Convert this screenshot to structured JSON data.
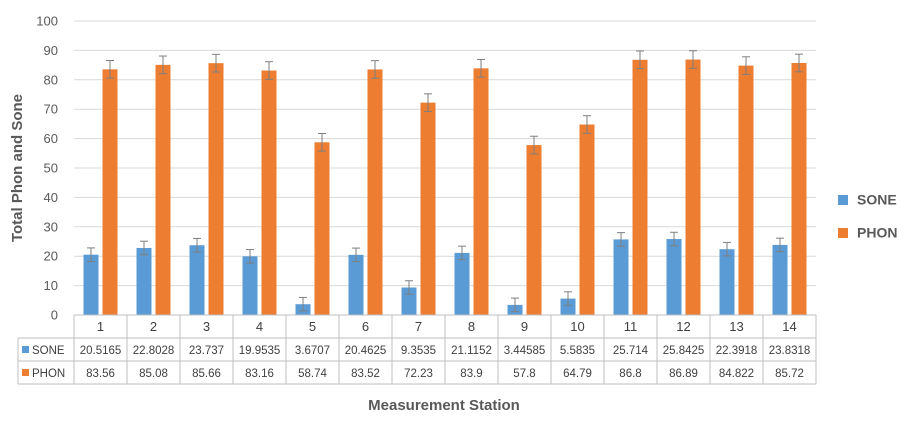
{
  "chart_data": {
    "type": "bar",
    "title": "",
    "xlabel": "Measurement Station",
    "ylabel": "Total Phon and Sone",
    "ylim": [
      0,
      100
    ],
    "yticks": [
      0,
      10,
      20,
      30,
      40,
      50,
      60,
      70,
      80,
      90,
      100
    ],
    "grid": true,
    "legend_position": "right",
    "error_bars": true,
    "categories": [
      "1",
      "2",
      "3",
      "4",
      "5",
      "6",
      "7",
      "8",
      "9",
      "10",
      "11",
      "12",
      "13",
      "14"
    ],
    "series": [
      {
        "name": "SONE",
        "color": "#5b9bd5",
        "labels": [
          "20.5165",
          "22.8028",
          "23.737",
          "19.9535",
          "3.6707",
          "20.4625",
          "9.3535",
          "21.1152",
          "3.44585",
          "5.5835",
          "25.714",
          "25.8425",
          "22.3918",
          "23.8318"
        ],
        "values": [
          20.5165,
          22.8028,
          23.737,
          19.9535,
          3.6707,
          20.4625,
          9.3535,
          21.1152,
          3.44585,
          5.5835,
          25.714,
          25.8425,
          22.3918,
          23.8318
        ],
        "errors": [
          2.3,
          2.3,
          2.3,
          2.3,
          2.3,
          2.3,
          2.3,
          2.3,
          2.3,
          2.3,
          2.3,
          2.3,
          2.3,
          2.3
        ]
      },
      {
        "name": "PHON",
        "color": "#ed7d31",
        "labels": [
          "83.56",
          "85.08",
          "85.66",
          "83.16",
          "58.74",
          "83.52",
          "72.23",
          "83.9",
          "57.8",
          "64.79",
          "86.8",
          "86.89",
          "84.822",
          "85.72"
        ],
        "values": [
          83.56,
          85.08,
          85.66,
          83.16,
          58.74,
          83.52,
          72.23,
          83.9,
          57.8,
          64.79,
          86.8,
          86.89,
          84.822,
          85.72
        ],
        "errors": [
          3,
          3,
          3,
          3,
          3,
          3,
          3,
          3,
          3,
          3,
          3,
          3,
          3,
          3
        ]
      }
    ]
  }
}
